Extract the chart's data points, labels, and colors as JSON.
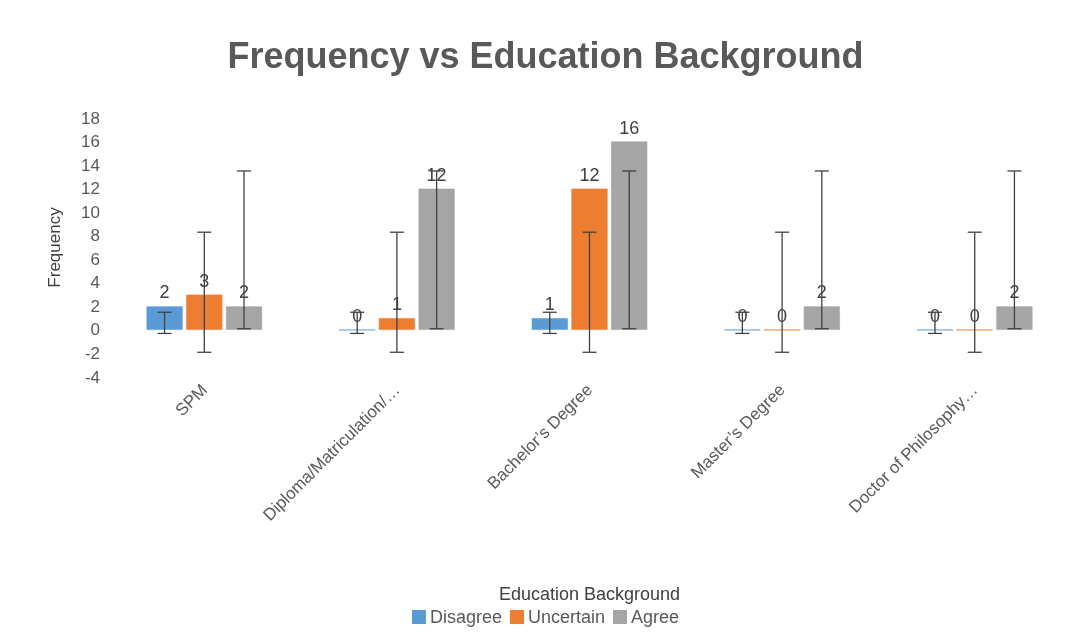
{
  "chart_data": {
    "type": "bar",
    "title": "Frequency vs Education Background",
    "xlabel": "Education Background",
    "ylabel": "Frequency",
    "categories": [
      "SPM",
      "Diploma/Matriculation/…",
      "Bachelor’s Degree",
      "Master’s Degree",
      "Doctor of Philosophy…"
    ],
    "series": [
      {
        "name": "Disagree",
        "color": "#5b9bd5",
        "values": [
          2,
          0,
          1,
          0,
          0
        ],
        "errors": [
          [
            -0.3,
            1.5
          ],
          [
            -0.3,
            1.5
          ],
          [
            -0.3,
            1.5
          ],
          [
            -0.3,
            1.5
          ],
          [
            -0.3,
            1.5
          ]
        ]
      },
      {
        "name": "Uncertain",
        "color": "#ed7d31",
        "values": [
          3,
          1,
          12,
          0,
          0
        ],
        "errors": [
          [
            -1.9,
            8.3
          ],
          [
            -1.9,
            8.3
          ],
          [
            -1.9,
            8.3
          ],
          [
            -1.9,
            8.3
          ],
          [
            -1.9,
            8.3
          ]
        ]
      },
      {
        "name": "Agree",
        "color": "#a5a5a5",
        "values": [
          2,
          12,
          16,
          2,
          2
        ],
        "errors": [
          [
            0.1,
            13.5
          ],
          [
            0.1,
            13.5
          ],
          [
            0.1,
            13.5
          ],
          [
            0.1,
            13.5
          ],
          [
            0.1,
            13.5
          ]
        ]
      }
    ],
    "ylim": [
      -4,
      18
    ],
    "yticks": [
      -4,
      -2,
      0,
      2,
      4,
      6,
      8,
      10,
      12,
      14,
      16,
      18
    ],
    "grid": false,
    "legend": "bottom",
    "data_labels": true
  }
}
